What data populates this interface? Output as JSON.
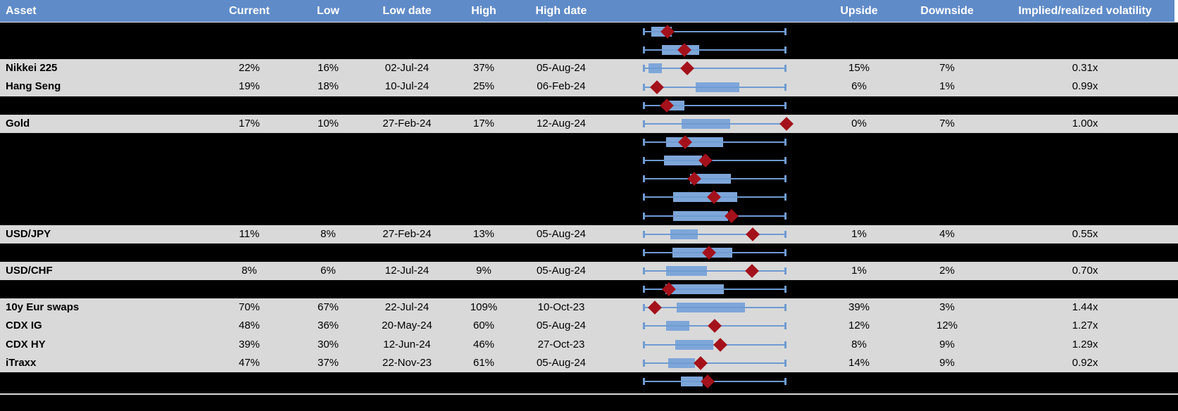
{
  "columns": {
    "asset": "Asset",
    "current": "Current",
    "low": "Low",
    "low_date": "Low date",
    "high": "High",
    "high_date": "High date",
    "upside": "Upside",
    "downside": "Downside",
    "ivol": "Implied/realized volatility"
  },
  "colors": {
    "header_bg": "#5f8bc8",
    "header_text": "#ffffff",
    "row_gray": "#d9d9d9",
    "row_black": "#000000",
    "box_fill": "#7ea6d9",
    "whisker": "#6f9bd2",
    "marker": "#a4111b"
  },
  "chart_data": {
    "type": "table",
    "columns": [
      "Asset",
      "Current",
      "Low",
      "Low date",
      "High",
      "High date",
      "Range boxplot",
      "Upside",
      "Downside",
      "Implied/realized volatility"
    ],
    "boxplot_note": "Each row shows a horizontal box-whisker of the range (whiskers 0 to 1 of low-high span), blue box = middle range, red diamond = current level position",
    "rows": [
      {
        "redacted": true,
        "asset": "",
        "current": "",
        "low": "",
        "low_date": "",
        "high": "",
        "high_date": "",
        "upside": "",
        "downside": "",
        "ivol": "",
        "boxplot": {
          "whisker": [
            0,
            1
          ],
          "box": [
            0.059,
            0.203
          ],
          "marker": 0.172
        }
      },
      {
        "redacted": true,
        "asset": "",
        "current": "",
        "low": "",
        "low_date": "",
        "high": "",
        "high_date": "",
        "upside": "",
        "downside": "",
        "ivol": "",
        "boxplot": {
          "whisker": [
            0,
            1
          ],
          "box": [
            0.132,
            0.392
          ],
          "marker": 0.289
        }
      },
      {
        "redacted": false,
        "asset": "Nikkei 225",
        "current": "22%",
        "low": "16%",
        "low_date": "02-Jul-24",
        "high": "37%",
        "high_date": "05-Aug-24",
        "upside": "15%",
        "downside": "7%",
        "ivol": "0.31x",
        "boxplot": {
          "whisker": [
            0,
            1
          ],
          "box": [
            0.038,
            0.134
          ],
          "marker": 0.308
        }
      },
      {
        "redacted": false,
        "asset": "Hang Seng",
        "current": "19%",
        "low": "18%",
        "low_date": "10-Jul-24",
        "high": "25%",
        "high_date": "06-Feb-24",
        "upside": "6%",
        "downside": "1%",
        "ivol": "0.99x",
        "boxplot": {
          "whisker": [
            0,
            1
          ],
          "box": [
            0.369,
            0.672
          ],
          "marker": 0.096
        }
      },
      {
        "redacted": true,
        "asset": "",
        "current": "",
        "low": "",
        "low_date": "",
        "high": "",
        "high_date": "",
        "upside": "",
        "downside": "",
        "ivol": "",
        "boxplot": {
          "whisker": [
            0,
            1
          ],
          "box": [
            0.155,
            0.289
          ],
          "marker": 0.167
        }
      },
      {
        "redacted": false,
        "asset": "Gold",
        "current": "17%",
        "low": "10%",
        "low_date": "27-Feb-24",
        "high": "17%",
        "high_date": "12-Aug-24",
        "upside": "0%",
        "downside": "7%",
        "ivol": "1.00x",
        "boxplot": {
          "whisker": [
            0,
            1
          ],
          "box": [
            0.272,
            0.607
          ],
          "marker": 1.0
        }
      },
      {
        "redacted": true,
        "asset": "",
        "current": "",
        "low": "",
        "low_date": "",
        "high": "",
        "high_date": "",
        "upside": "",
        "downside": "",
        "ivol": "",
        "boxplot": {
          "whisker": [
            0,
            1
          ],
          "box": [
            0.162,
            0.558
          ],
          "marker": 0.293
        }
      },
      {
        "redacted": true,
        "asset": "",
        "current": "",
        "low": "",
        "low_date": "",
        "high": "",
        "high_date": "",
        "upside": "",
        "downside": "",
        "ivol": "",
        "boxplot": {
          "whisker": [
            0,
            1
          ],
          "box": [
            0.147,
            0.412
          ],
          "marker": 0.436
        }
      },
      {
        "redacted": true,
        "asset": "",
        "current": "",
        "low": "",
        "low_date": "",
        "high": "",
        "high_date": "",
        "upside": "",
        "downside": "",
        "ivol": "",
        "boxplot": {
          "whisker": [
            0,
            1
          ],
          "box": [
            0.33,
            0.615
          ],
          "marker": 0.359
        }
      },
      {
        "redacted": true,
        "asset": "",
        "current": "",
        "low": "",
        "low_date": "",
        "high": "",
        "high_date": "",
        "upside": "",
        "downside": "",
        "ivol": "",
        "boxplot": {
          "whisker": [
            0,
            1
          ],
          "box": [
            0.212,
            0.657
          ],
          "marker": 0.493
        }
      },
      {
        "redacted": true,
        "asset": "",
        "current": "",
        "low": "",
        "low_date": "",
        "high": "",
        "high_date": "",
        "upside": "",
        "downside": "",
        "ivol": "",
        "boxplot": {
          "whisker": [
            0,
            1
          ],
          "box": [
            0.212,
            0.595
          ],
          "marker": 0.616
        }
      },
      {
        "redacted": false,
        "asset": "USD/JPY",
        "current": "11%",
        "low": "8%",
        "low_date": "27-Feb-24",
        "high": "13%",
        "high_date": "05-Aug-24",
        "upside": "1%",
        "downside": "4%",
        "ivol": "0.55x",
        "boxplot": {
          "whisker": [
            0,
            1
          ],
          "box": [
            0.191,
            0.384
          ],
          "marker": 0.763
        }
      },
      {
        "redacted": true,
        "asset": "",
        "current": "",
        "low": "",
        "low_date": "",
        "high": "",
        "high_date": "",
        "upside": "",
        "downside": "",
        "ivol": "",
        "boxplot": {
          "whisker": [
            0,
            1
          ],
          "box": [
            0.207,
            0.624
          ],
          "marker": 0.461
        }
      },
      {
        "redacted": false,
        "asset": "USD/CHF",
        "current": "8%",
        "low": "6%",
        "low_date": "12-Jul-24",
        "high": "9%",
        "high_date": "05-Aug-24",
        "upside": "1%",
        "downside": "2%",
        "ivol": "0.70x",
        "boxplot": {
          "whisker": [
            0,
            1
          ],
          "box": [
            0.163,
            0.444
          ],
          "marker": 0.76
        }
      },
      {
        "redacted": true,
        "asset": "",
        "current": "",
        "low": "",
        "low_date": "",
        "high": "",
        "high_date": "",
        "upside": "",
        "downside": "",
        "ivol": "",
        "boxplot": {
          "whisker": [
            0,
            1
          ],
          "box": [
            0.158,
            0.564
          ],
          "marker": 0.18
        }
      },
      {
        "redacted": false,
        "asset": "10y Eur swaps",
        "current": "70%",
        "low": "67%",
        "low_date": "22-Jul-24",
        "high": "109%",
        "high_date": "10-Oct-23",
        "upside": "39%",
        "downside": "3%",
        "ivol": "1.44x",
        "boxplot": {
          "whisker": [
            0,
            1
          ],
          "box": [
            0.237,
            0.713
          ],
          "marker": 0.081
        }
      },
      {
        "redacted": false,
        "asset": "CDX IG",
        "current": "48%",
        "low": "36%",
        "low_date": "20-May-24",
        "high": "60%",
        "high_date": "05-Aug-24",
        "upside": "12%",
        "downside": "12%",
        "ivol": "1.27x",
        "boxplot": {
          "whisker": [
            0,
            1
          ],
          "box": [
            0.163,
            0.325
          ],
          "marker": 0.502
        }
      },
      {
        "redacted": false,
        "asset": "CDX HY",
        "current": "39%",
        "low": "30%",
        "low_date": "12-Jun-24",
        "high": "46%",
        "high_date": "27-Oct-23",
        "upside": "8%",
        "downside": "9%",
        "ivol": "1.29x",
        "boxplot": {
          "whisker": [
            0,
            1
          ],
          "box": [
            0.224,
            0.492
          ],
          "marker": 0.537
        }
      },
      {
        "redacted": false,
        "asset": "iTraxx",
        "current": "47%",
        "low": "37%",
        "low_date": "22-Nov-23",
        "high": "61%",
        "high_date": "05-Aug-24",
        "upside": "14%",
        "downside": "9%",
        "ivol": "0.92x",
        "boxplot": {
          "whisker": [
            0,
            1
          ],
          "box": [
            0.175,
            0.365
          ],
          "marker": 0.404
        }
      },
      {
        "redacted": true,
        "asset": "",
        "current": "",
        "low": "",
        "low_date": "",
        "high": "",
        "high_date": "",
        "upside": "",
        "downside": "",
        "ivol": "",
        "boxplot": {
          "whisker": [
            0,
            1
          ],
          "box": [
            0.263,
            0.419
          ],
          "marker": 0.451
        }
      }
    ]
  }
}
